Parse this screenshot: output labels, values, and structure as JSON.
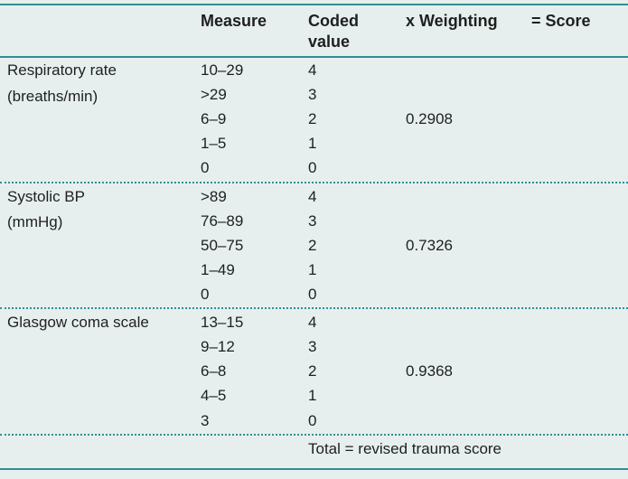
{
  "headers": {
    "measure": "Measure",
    "coded_value": "Coded value",
    "weighting": "x Weighting",
    "score": "= Score"
  },
  "sections": [
    {
      "label_line1": "Respiratory rate",
      "label_line2": "(breaths/min)",
      "weighting": "0.2908",
      "rows": [
        {
          "measure": "10–29",
          "coded": "4"
        },
        {
          "measure": ">29",
          "coded": "3"
        },
        {
          "measure": "6–9",
          "coded": "2"
        },
        {
          "measure": "1–5",
          "coded": "1"
        },
        {
          "measure": "0",
          "coded": "0"
        }
      ]
    },
    {
      "label_line1": "Systolic BP",
      "label_line2": "(mmHg)",
      "weighting": "0.7326",
      "rows": [
        {
          "measure": ">89",
          "coded": "4"
        },
        {
          "measure": "76–89",
          "coded": "3"
        },
        {
          "measure": "50–75",
          "coded": "2"
        },
        {
          "measure": "1–49",
          "coded": "1"
        },
        {
          "measure": "0",
          "coded": "0"
        }
      ]
    },
    {
      "label_line1": "Glasgow coma scale",
      "label_line2": "",
      "weighting": "0.9368",
      "rows": [
        {
          "measure": "13–15",
          "coded": "4"
        },
        {
          "measure": "9–12",
          "coded": "3"
        },
        {
          "measure": "6–8",
          "coded": "2"
        },
        {
          "measure": "4–5",
          "coded": "1"
        },
        {
          "measure": "3",
          "coded": "0"
        }
      ]
    }
  ],
  "total": "Total = revised trauma score"
}
